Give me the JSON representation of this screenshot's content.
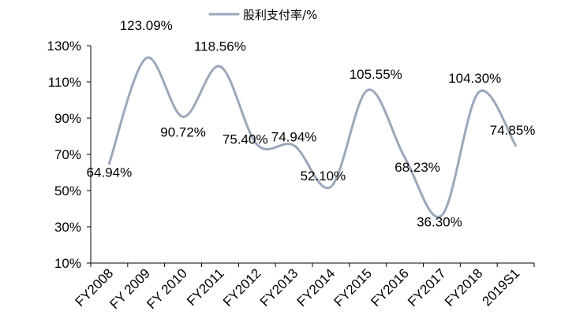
{
  "chart_data": {
    "type": "line",
    "categories": [
      "FY2008",
      "FY 2009",
      "FY 2010",
      "FY2011",
      "FY2012",
      "FY2013",
      "FY2014",
      "FY2015",
      "FY2016",
      "FY2017",
      "FY2018",
      "2019S1"
    ],
    "series": [
      {
        "name": "股利支付率/%",
        "values": [
          64.94,
          123.09,
          90.72,
          118.56,
          75.4,
          74.94,
          52.1,
          105.55,
          68.23,
          36.3,
          104.3,
          74.85
        ],
        "labels": [
          "64.94%",
          "123.09%",
          "90.72%",
          "118.56%",
          "75.40%",
          "74.94%",
          "52.10%",
          "105.55%",
          "68.23%",
          "36.30%",
          "104.30%",
          "74.85%"
        ],
        "color": "#9aa8ba"
      }
    ],
    "yticks": [
      "10%",
      "30%",
      "50%",
      "70%",
      "90%",
      "110%",
      "130%"
    ],
    "ylim": [
      10,
      130
    ],
    "grid": false,
    "legend": "top-center",
    "title": "",
    "xlabel": "",
    "ylabel": ""
  }
}
